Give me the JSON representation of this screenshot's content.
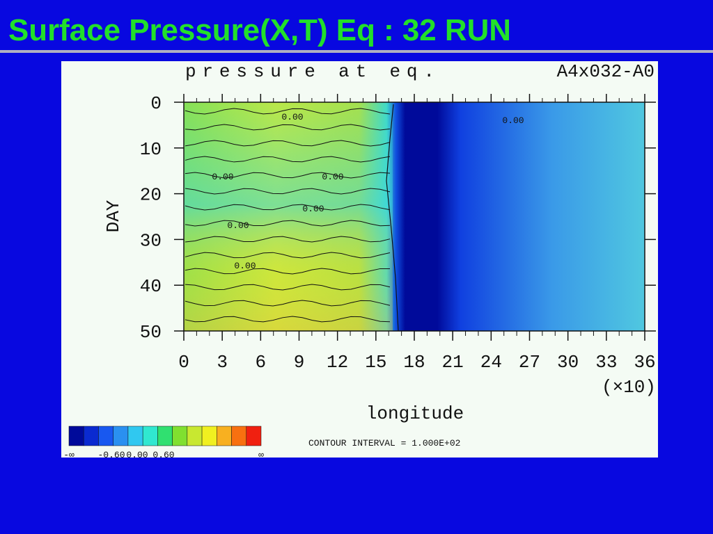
{
  "slide": {
    "title": "Surface Pressure(X,T) Eq  : 32 RUN",
    "figure": {
      "plot_title": "pressure at eq.",
      "run_id": "A4x032-A0",
      "y_label": "DAY",
      "x_label": "longitude",
      "x_multiplier": "(×10)",
      "y_tick_labels": [
        "0",
        "10",
        "20",
        "30",
        "40",
        "50"
      ],
      "x_tick_labels": [
        "0",
        "3",
        "6",
        "9",
        "12",
        "15",
        "18",
        "21",
        "24",
        "27",
        "30",
        "33",
        "36"
      ],
      "contour_labels": [
        "0.00",
        "0.00",
        "0.00",
        "0.00",
        "0.00",
        "0.00",
        "0.00"
      ],
      "colorbar_labels": [
        "-∞",
        "-0.60",
        "0.00",
        "0.60",
        "∞"
      ],
      "contour_interval": "CONTOUR INTERVAL = 1.000E+02"
    }
  }
}
